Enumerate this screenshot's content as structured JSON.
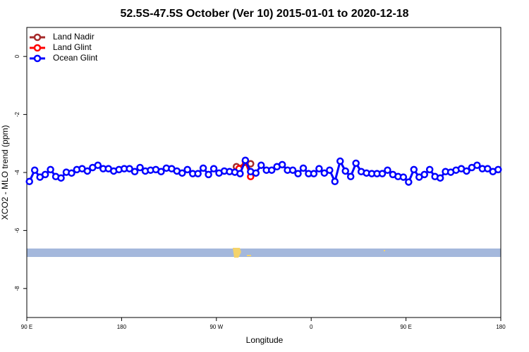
{
  "chart_data": {
    "type": "line",
    "title": "52.5S-47.5S October (Ver 10)   2015-01-01 to 2020-12-18",
    "x_label": "Longitude",
    "y_label": "XCO2 - MLO trend (ppm)",
    "xlim": [
      90,
      540
    ],
    "ylim": [
      -9,
      1
    ],
    "xticks": [
      {
        "value": 90,
        "label": "90 E"
      },
      180,
      {
        "value": 270,
        "label": "90 W"
      },
      {
        "value": 360,
        "label": "0"
      },
      {
        "value": 450,
        "label": "90 E"
      },
      {
        "value": 540,
        "label": "180"
      }
    ],
    "yticks": [
      0,
      -2,
      -4,
      -6,
      -8
    ],
    "legend": "top-left",
    "series": [
      {
        "name": "Land Nadir",
        "color": "#a52a2a",
        "x": [
          289,
          302.5
        ],
        "values": [
          -3.8,
          -3.7
        ]
      },
      {
        "name": "Land Glint",
        "color": "#ff0000",
        "x": [
          291.5,
          297.5,
          302.5
        ],
        "values": [
          -3.87,
          -3.61,
          -4.14
        ]
      },
      {
        "name": "Ocean Glint",
        "color": "#0000ff",
        "x": [
          92.5,
          97.5,
          102.5,
          107.5,
          112.5,
          117.5,
          122.5,
          127.5,
          132.5,
          137.5,
          142.5,
          147.5,
          152.5,
          157.5,
          162.5,
          167.5,
          172.5,
          177.5,
          182.5,
          187.5,
          192.5,
          197.5,
          202.5,
          207.5,
          212.5,
          217.5,
          222.5,
          227.5,
          232.5,
          237.5,
          242.5,
          247.5,
          252.5,
          257.5,
          262.5,
          267.5,
          272.5,
          277.5,
          282.5,
          287.5,
          292.5,
          297.5,
          302.5,
          307.5,
          312.5,
          317.5,
          322.5,
          327.5,
          332.5,
          337.5,
          342.5,
          347.5,
          352.5,
          357.5,
          362.5,
          367.5,
          372.5,
          377.5,
          382.5,
          387.5,
          392.5,
          397.5,
          402.5,
          407.5,
          412.5,
          417.5,
          422.5,
          427.5,
          432.5,
          437.5,
          442.5,
          447.5,
          452.5,
          457.5,
          462.5,
          467.5,
          472.5,
          477.5,
          482.5,
          487.5,
          492.5,
          497.5,
          502.5,
          507.5,
          512.5,
          517.5,
          522.5,
          527.5,
          532.5,
          537.5
        ],
        "values": [
          -4.31,
          -3.92,
          -4.16,
          -4.07,
          -3.9,
          -4.14,
          -4.19,
          -3.99,
          -4.02,
          -3.9,
          -3.87,
          -3.95,
          -3.83,
          -3.75,
          -3.87,
          -3.87,
          -3.95,
          -3.9,
          -3.87,
          -3.87,
          -3.97,
          -3.83,
          -3.95,
          -3.92,
          -3.9,
          -3.97,
          -3.85,
          -3.87,
          -3.95,
          -4.02,
          -3.9,
          -4.04,
          -4.04,
          -3.85,
          -4.07,
          -3.87,
          -4.02,
          -3.95,
          -3.97,
          -3.99,
          -4.04,
          -3.58,
          -3.97,
          -4.02,
          -3.75,
          -3.92,
          -3.92,
          -3.8,
          -3.73,
          -3.92,
          -3.92,
          -4.04,
          -3.85,
          -4.04,
          -4.04,
          -3.87,
          -4.02,
          -3.92,
          -4.31,
          -3.61,
          -3.95,
          -4.14,
          -3.68,
          -3.97,
          -4.02,
          -4.04,
          -4.04,
          -4.04,
          -3.92,
          -4.07,
          -4.14,
          -4.16,
          -4.33,
          -3.9,
          -4.16,
          -4.07,
          -3.9,
          -4.14,
          -4.19,
          -3.97,
          -3.99,
          -3.92,
          -3.87,
          -3.95,
          -3.83,
          -3.75,
          -3.87,
          -3.87,
          -3.97,
          -3.9
        ]
      }
    ]
  }
}
